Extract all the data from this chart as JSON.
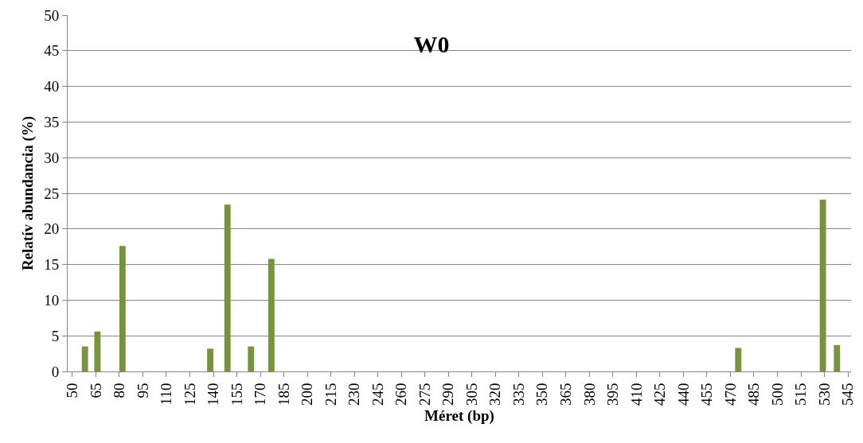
{
  "chart_data": {
    "type": "bar",
    "title": "W0",
    "xlabel": "Méret (bp)",
    "ylabel": "Relatív abundancia (%)",
    "x": [
      58,
      66,
      82,
      138,
      149,
      164,
      177,
      475,
      529,
      538
    ],
    "values": [
      3.5,
      5.6,
      17.6,
      3.2,
      23.4,
      3.5,
      15.8,
      3.3,
      24.1,
      3.7
    ],
    "color": "#77933c",
    "xlim": [
      47,
      547
    ],
    "xticks": [
      50,
      65,
      80,
      95,
      110,
      125,
      140,
      155,
      170,
      185,
      200,
      215,
      230,
      245,
      260,
      275,
      290,
      305,
      320,
      335,
      350,
      365,
      380,
      395,
      410,
      425,
      440,
      455,
      470,
      485,
      500,
      515,
      530,
      545
    ],
    "ylim": [
      0,
      50
    ],
    "yticks": [
      0,
      5,
      10,
      15,
      20,
      25,
      30,
      35,
      40,
      45,
      50
    ],
    "grid": "y"
  }
}
